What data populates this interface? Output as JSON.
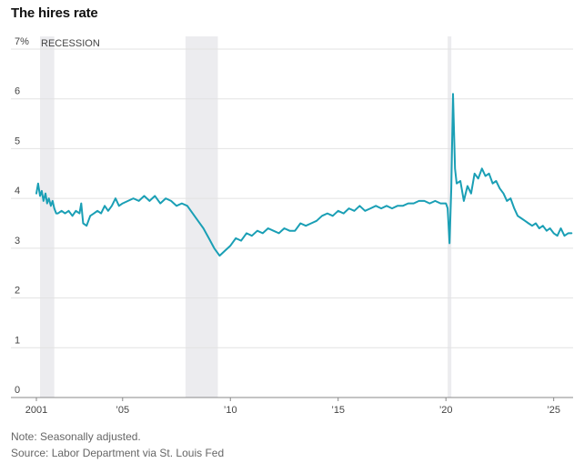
{
  "chart_data": {
    "type": "line",
    "title": "The hires rate",
    "xlabel": "",
    "ylabel": "",
    "ylim": [
      0,
      7
    ],
    "xlim": [
      2001.0,
      2025.9
    ],
    "y_ticks": [
      0,
      1,
      2,
      3,
      4,
      5,
      6,
      7
    ],
    "y_tick_labels": [
      "0",
      "1",
      "2",
      "3",
      "4",
      "5",
      "6",
      "7%"
    ],
    "x_ticks": [
      2001,
      2005,
      2010,
      2015,
      2020,
      2025
    ],
    "x_tick_labels": [
      "2001",
      "’05",
      "’10",
      "’15",
      "’20",
      "’25"
    ],
    "recession_label": "RECESSION",
    "recessions": [
      [
        2001.17,
        2001.83
      ],
      [
        2007.92,
        2009.42
      ],
      [
        2020.08,
        2020.25
      ]
    ],
    "line_color": "#1a9fb5",
    "recession_color": "#ececef",
    "series": [
      {
        "name": "Hires rate",
        "x": [
          2001.0,
          2001.08,
          2001.17,
          2001.25,
          2001.33,
          2001.42,
          2001.5,
          2001.58,
          2001.67,
          2001.75,
          2001.83,
          2001.92,
          2002.0,
          2002.17,
          2002.33,
          2002.5,
          2002.67,
          2002.83,
          2003.0,
          2003.08,
          2003.17,
          2003.33,
          2003.5,
          2003.67,
          2003.83,
          2004.0,
          2004.17,
          2004.33,
          2004.5,
          2004.67,
          2004.83,
          2005.0,
          2005.25,
          2005.5,
          2005.75,
          2006.0,
          2006.25,
          2006.5,
          2006.75,
          2007.0,
          2007.25,
          2007.5,
          2007.75,
          2008.0,
          2008.25,
          2008.5,
          2008.75,
          2009.0,
          2009.25,
          2009.5,
          2009.75,
          2010.0,
          2010.25,
          2010.5,
          2010.75,
          2011.0,
          2011.25,
          2011.5,
          2011.75,
          2012.0,
          2012.25,
          2012.5,
          2012.75,
          2013.0,
          2013.25,
          2013.5,
          2013.75,
          2014.0,
          2014.25,
          2014.5,
          2014.75,
          2015.0,
          2015.25,
          2015.5,
          2015.75,
          2016.0,
          2016.25,
          2016.5,
          2016.75,
          2017.0,
          2017.25,
          2017.5,
          2017.75,
          2018.0,
          2018.25,
          2018.5,
          2018.75,
          2019.0,
          2019.25,
          2019.5,
          2019.75,
          2020.0,
          2020.08,
          2020.17,
          2020.25,
          2020.33,
          2020.42,
          2020.5,
          2020.67,
          2020.83,
          2021.0,
          2021.17,
          2021.33,
          2021.5,
          2021.67,
          2021.83,
          2022.0,
          2022.17,
          2022.33,
          2022.5,
          2022.67,
          2022.83,
          2023.0,
          2023.17,
          2023.33,
          2023.5,
          2023.67,
          2023.83,
          2024.0,
          2024.17,
          2024.33,
          2024.5,
          2024.67,
          2024.83,
          2025.0,
          2025.17,
          2025.33,
          2025.5,
          2025.67,
          2025.83
        ],
        "values": [
          4.1,
          4.3,
          4.05,
          4.15,
          3.95,
          4.1,
          3.9,
          4.0,
          3.85,
          3.95,
          3.8,
          3.7,
          3.7,
          3.75,
          3.7,
          3.75,
          3.65,
          3.75,
          3.7,
          3.9,
          3.5,
          3.45,
          3.65,
          3.7,
          3.75,
          3.7,
          3.85,
          3.75,
          3.85,
          4.0,
          3.85,
          3.9,
          3.95,
          4.0,
          3.95,
          4.05,
          3.95,
          4.05,
          3.9,
          4.0,
          3.95,
          3.85,
          3.9,
          3.85,
          3.7,
          3.55,
          3.4,
          3.2,
          3.0,
          2.85,
          2.95,
          3.05,
          3.2,
          3.15,
          3.3,
          3.25,
          3.35,
          3.3,
          3.4,
          3.35,
          3.3,
          3.4,
          3.35,
          3.35,
          3.5,
          3.45,
          3.5,
          3.55,
          3.65,
          3.7,
          3.65,
          3.75,
          3.7,
          3.8,
          3.75,
          3.85,
          3.75,
          3.8,
          3.85,
          3.8,
          3.85,
          3.8,
          3.85,
          3.85,
          3.9,
          3.9,
          3.95,
          3.95,
          3.9,
          3.95,
          3.9,
          3.9,
          3.8,
          3.1,
          4.2,
          6.1,
          4.6,
          4.3,
          4.35,
          3.95,
          4.25,
          4.1,
          4.5,
          4.4,
          4.6,
          4.45,
          4.5,
          4.3,
          4.35,
          4.2,
          4.1,
          3.95,
          4.0,
          3.8,
          3.65,
          3.6,
          3.55,
          3.5,
          3.45,
          3.5,
          3.4,
          3.45,
          3.35,
          3.4,
          3.3,
          3.25,
          3.4,
          3.25,
          3.3,
          3.3
        ]
      }
    ]
  },
  "footer": {
    "note": "Note: Seasonally adjusted.",
    "source": "Source: Labor Department via St. Louis Fed"
  }
}
